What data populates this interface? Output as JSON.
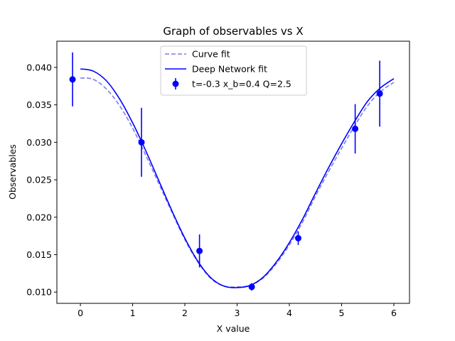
{
  "chart_data": {
    "type": "line",
    "title": "Graph of observables vs X",
    "xlabel": "X value",
    "ylabel": "Observables",
    "xlim": [
      -0.45,
      6.3
    ],
    "ylim": [
      0.0085,
      0.0435
    ],
    "xticks": [
      0,
      1,
      2,
      3,
      4,
      5,
      6
    ],
    "yticks": [
      0.01,
      0.015,
      0.02,
      0.025,
      0.03,
      0.035,
      0.04
    ],
    "ytick_labels": [
      "0.010",
      "0.015",
      "0.020",
      "0.025",
      "0.030",
      "0.035",
      "0.040"
    ],
    "grid": false,
    "legend_position": "top-center",
    "series": [
      {
        "name": "Curve fit",
        "kind": "line",
        "style": "dashed",
        "color": "#7b7bf0",
        "x": [
          0.0,
          0.25,
          0.5,
          0.75,
          1.0,
          1.25,
          1.5,
          1.75,
          2.0,
          2.25,
          2.5,
          2.75,
          3.0,
          3.25,
          3.5,
          3.75,
          4.0,
          4.25,
          4.5,
          4.75,
          5.0,
          5.25,
          5.5,
          5.75,
          6.0
        ],
        "y": [
          0.0386,
          0.0384,
          0.0371,
          0.0349,
          0.0319,
          0.0283,
          0.0245,
          0.0207,
          0.017,
          0.014,
          0.0118,
          0.0108,
          0.0107,
          0.0109,
          0.0119,
          0.0138,
          0.0163,
          0.0193,
          0.0228,
          0.0261,
          0.0292,
          0.0322,
          0.0349,
          0.0368,
          0.038
        ]
      },
      {
        "name": "Deep Network fit",
        "kind": "line",
        "style": "solid",
        "color": "#0000ff",
        "x": [
          0.0,
          0.25,
          0.5,
          0.75,
          1.0,
          1.25,
          1.5,
          1.75,
          2.0,
          2.25,
          2.5,
          2.75,
          3.0,
          3.25,
          3.5,
          3.75,
          4.0,
          4.25,
          4.5,
          4.75,
          5.0,
          5.25,
          5.5,
          5.75,
          6.0
        ],
        "y": [
          0.0398,
          0.0395,
          0.0382,
          0.0358,
          0.0326,
          0.0289,
          0.0249,
          0.0209,
          0.0172,
          0.0141,
          0.0119,
          0.0108,
          0.0106,
          0.0109,
          0.012,
          0.014,
          0.0166,
          0.0197,
          0.0232,
          0.0266,
          0.0298,
          0.0328,
          0.0355,
          0.0373,
          0.0385
        ]
      },
      {
        "name": "t=-0.3 x_b=0.4 Q=2.5",
        "kind": "errorbar",
        "color": "#0000ff",
        "points": [
          {
            "x": -0.15,
            "y": 0.0384,
            "err": 0.0036
          },
          {
            "x": 1.17,
            "y": 0.03,
            "err": 0.0046
          },
          {
            "x": 2.28,
            "y": 0.0155,
            "err": 0.0022
          },
          {
            "x": 3.28,
            "y": 0.0107,
            "err": 0.0005
          },
          {
            "x": 4.17,
            "y": 0.0172,
            "err": 0.0009
          },
          {
            "x": 5.26,
            "y": 0.0318,
            "err": 0.0033
          },
          {
            "x": 5.73,
            "y": 0.0365,
            "err": 0.0044
          }
        ]
      }
    ]
  }
}
